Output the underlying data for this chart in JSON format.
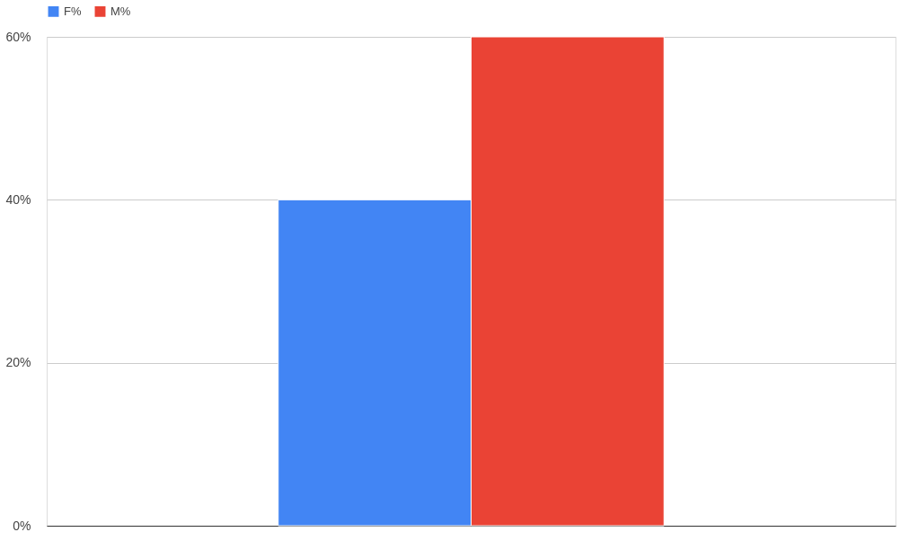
{
  "chart_data": {
    "type": "bar",
    "categories": [
      null
    ],
    "series": [
      {
        "name": "F%",
        "color": "#4285f4",
        "values": [
          40
        ]
      },
      {
        "name": "M%",
        "color": "#ea4335",
        "values": [
          60
        ]
      }
    ],
    "ylim": [
      0,
      60
    ],
    "yticks": [
      {
        "value": 0,
        "label": "0%"
      },
      {
        "value": 20,
        "label": "20%"
      },
      {
        "value": 40,
        "label": "40%"
      },
      {
        "value": 60,
        "label": "60%"
      }
    ],
    "grid": "y",
    "legend": "top"
  }
}
